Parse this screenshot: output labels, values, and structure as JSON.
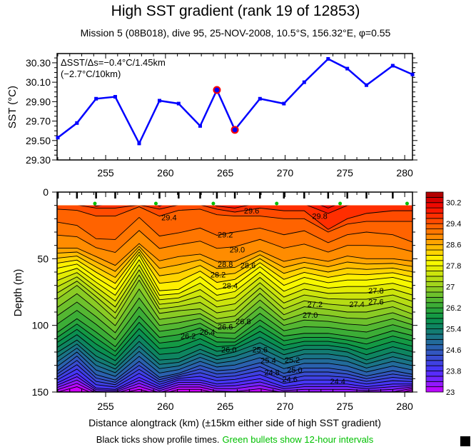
{
  "title": "High SST gradient (rank 19 of 12853)",
  "subtitle": "Mission 5 (08B018),  dive 95,  25-NOV-2008,  10.5°S, 156.32°E,  φ=0.55",
  "annotation": {
    "line1": "ΔSST/Δs=−0.4°C/1.45km",
    "line2": "(−2.7°C/10km)"
  },
  "footnote": {
    "black": "Black ticks show profile times.",
    "green": "Green bullets show 12-hour intervals",
    "green_color": "#00c000"
  },
  "chart_data": [
    {
      "type": "line",
      "ylabel": "SST (°C)",
      "xlim": [
        250.94,
        280.65
      ],
      "ylim": [
        29.3,
        30.395
      ],
      "x_ticks": [
        "255",
        "260",
        "265",
        "270",
        "275",
        "280"
      ],
      "y_ticks": [
        "30.30",
        "30.10",
        "29.90",
        "29.70",
        "29.50",
        "29.30"
      ],
      "line_color": "#0000ff",
      "highlight_color": "#ff0000",
      "x": [
        251.0,
        252.6,
        254.2,
        255.8,
        257.8,
        259.5,
        261.1,
        262.9,
        264.3,
        265.8,
        267.9,
        269.9,
        271.6,
        273.6,
        275.2,
        276.8,
        279.0,
        280.8
      ],
      "y": [
        29.53,
        29.68,
        29.93,
        29.95,
        29.47,
        29.91,
        29.88,
        29.65,
        30.02,
        29.61,
        29.93,
        29.88,
        30.1,
        30.34,
        30.24,
        30.07,
        30.27,
        30.18
      ],
      "highlighted_indices": [
        8,
        9
      ]
    },
    {
      "type": "contour",
      "xlabel": "Distance alongtrack (km) (±15km either side of high SST gradient)",
      "ylabel": "Depth (m)",
      "xlim": [
        250.94,
        280.65
      ],
      "ylim": [
        150,
        0
      ],
      "x_ticks": [
        "255",
        "260",
        "265",
        "270",
        "275",
        "280"
      ],
      "y_ticks": [
        "0",
        "50",
        "100",
        "150"
      ],
      "contour_interval": 0.2,
      "data_top_depth_m": 10,
      "profile_x": [
        251.0,
        252.6,
        254.2,
        255.8,
        257.8,
        259.5,
        261.1,
        262.9,
        264.3,
        265.8,
        267.9,
        269.9,
        271.6,
        273.6,
        275.2,
        276.8,
        279.0,
        280.8
      ],
      "green_bullets_x": [
        254.1,
        259.2,
        264.0,
        269.3,
        274.6,
        280.2
      ],
      "bullet_color": "#00c000",
      "isotherm_depths_m": [
        {
          "t": 29.8,
          "d": [
            5,
            5,
            10.5,
            8,
            5,
            10.5,
            5,
            5,
            10.5,
            12,
            8,
            8,
            9,
            16,
            10,
            8,
            8,
            8
          ]
        },
        {
          "t": 29.6,
          "d": [
            9.6,
            9.6,
            12,
            12,
            9.6,
            12.8,
            9.6,
            9.6,
            12.8,
            15,
            12,
            14,
            14,
            28,
            20,
            16,
            14,
            14
          ]
        },
        {
          "t": 29.4,
          "d": [
            12.8,
            13.7,
            18,
            18,
            11,
            18,
            13.7,
            12.8,
            17,
            18,
            18,
            20,
            20,
            30,
            24,
            22,
            22,
            22
          ]
        },
        {
          "t": 29.2,
          "d": [
            22.6,
            25,
            35,
            35.6,
            19,
            33,
            30.6,
            27,
            32.4,
            30,
            27,
            32,
            29,
            38,
            32,
            30,
            32,
            38
          ]
        },
        {
          "t": 28.8,
          "d": [
            42,
            42,
            48.4,
            55,
            38.6,
            51.6,
            48.4,
            46.6,
            52,
            52,
            44,
            52,
            49,
            52,
            48,
            50,
            50,
            52
          ]
        },
        {
          "t": 28.0,
          "d": [
            57,
            54,
            64,
            73,
            47,
            74,
            73,
            63.5,
            73,
            70,
            56,
            70,
            64,
            68,
            66,
            66,
            64,
            68
          ]
        },
        {
          "t": 27.0,
          "d": [
            80,
            70,
            82,
            95,
            66,
            91,
            89,
            87.6,
            95,
            93,
            76,
            92,
            86,
            88,
            90,
            90,
            86,
            92
          ]
        },
        {
          "t": 26.2,
          "d": [
            105,
            95,
            105,
            116,
            93,
            109,
            107,
            102,
            109,
            110,
            96,
            108,
            106,
            106,
            108,
            110,
            104,
            108
          ]
        },
        {
          "t": 25.4,
          "d": [
            120,
            111,
            123,
            130,
            112,
            126,
            125,
            118,
            123,
            120,
            113,
            122,
            118,
            118,
            120,
            126,
            120,
            124
          ]
        },
        {
          "t": 24.6,
          "d": [
            134,
            123,
            137,
            141,
            127,
            139,
            136,
            130,
            134,
            133,
            128,
            136,
            132,
            132,
            134,
            138,
            134,
            137
          ]
        },
        {
          "t": 23.8,
          "d": [
            143,
            136,
            147,
            148,
            139,
            146,
            141,
            141,
            144,
            143,
            140,
            146,
            144,
            144,
            144,
            146,
            144,
            144
          ]
        },
        {
          "t": 23.0,
          "d": [
            150,
            146,
            152,
            152,
            148,
            152,
            148,
            148,
            151,
            152,
            150,
            152,
            152,
            152,
            152,
            152,
            152,
            148
          ]
        }
      ],
      "contour_labels": [
        {
          "text": "29.4",
          "x": 260.3,
          "d": 19
        },
        {
          "text": "29.2",
          "x": 265.0,
          "d": 32
        },
        {
          "text": "29.6",
          "x": 267.2,
          "d": 14
        },
        {
          "text": "29.8",
          "x": 272.9,
          "d": 18
        },
        {
          "text": "29.0",
          "x": 266.0,
          "d": 43
        },
        {
          "text": "28.8",
          "x": 265.0,
          "d": 54
        },
        {
          "text": "28.6",
          "x": 266.9,
          "d": 55
        },
        {
          "text": "28.2",
          "x": 264.4,
          "d": 62
        },
        {
          "text": "28.4",
          "x": 265.4,
          "d": 66
        },
        {
          "text": "27.8",
          "x": 277.6,
          "d": 74
        },
        {
          "text": "27.6",
          "x": 277.6,
          "d": 78
        },
        {
          "text": "27.4",
          "x": 276.0,
          "d": 84
        },
        {
          "text": "27.2",
          "x": 272.5,
          "d": 84
        },
        {
          "text": "27.0",
          "x": 272.1,
          "d": 90
        },
        {
          "text": "26.8",
          "x": 266.5,
          "d": 97
        },
        {
          "text": "26.6",
          "x": 265.0,
          "d": 101
        },
        {
          "text": "26.4",
          "x": 263.5,
          "d": 105
        },
        {
          "text": "26.2",
          "x": 262.2,
          "d": 108
        },
        {
          "text": "26.0",
          "x": 265.3,
          "d": 118
        },
        {
          "text": "25.6",
          "x": 267.9,
          "d": 118
        },
        {
          "text": "25.4",
          "x": 268.6,
          "d": 122
        },
        {
          "text": "25.2",
          "x": 270.6,
          "d": 126
        },
        {
          "text": "25.0",
          "x": 270.8,
          "d": 129
        },
        {
          "text": "24.8",
          "x": 268.9,
          "d": 131
        },
        {
          "text": "24.6",
          "x": 270.4,
          "d": 134
        },
        {
          "text": "24.4",
          "x": 274.4,
          "d": 142
        }
      ],
      "colorbar": {
        "min": 23.0,
        "max": 30.6,
        "step": 0.2,
        "labels": [
          "30.2",
          "29.4",
          "28.6",
          "27.8",
          "27",
          "26.2",
          "25.4",
          "24.6",
          "23.8",
          "23"
        ],
        "colormap": [
          [
            23.0,
            "#cc00ff"
          ],
          [
            23.4,
            "#8020ff"
          ],
          [
            23.8,
            "#4a30ff"
          ],
          [
            24.2,
            "#3c46d8"
          ],
          [
            24.6,
            "#2e5cb8"
          ],
          [
            25.0,
            "#1e7090"
          ],
          [
            25.4,
            "#108068"
          ],
          [
            25.8,
            "#0a9448"
          ],
          [
            26.2,
            "#30a838"
          ],
          [
            26.6,
            "#60bc30"
          ],
          [
            27.0,
            "#98d020"
          ],
          [
            27.4,
            "#c0e010"
          ],
          [
            27.8,
            "#eef000"
          ],
          [
            28.0,
            "#ffff00"
          ],
          [
            28.2,
            "#ffe000"
          ],
          [
            28.6,
            "#ffb000"
          ],
          [
            29.0,
            "#ff8000"
          ],
          [
            29.4,
            "#ff5a00"
          ],
          [
            29.8,
            "#ff2000"
          ],
          [
            30.2,
            "#e80000"
          ],
          [
            30.6,
            "#a00000"
          ]
        ]
      }
    }
  ]
}
